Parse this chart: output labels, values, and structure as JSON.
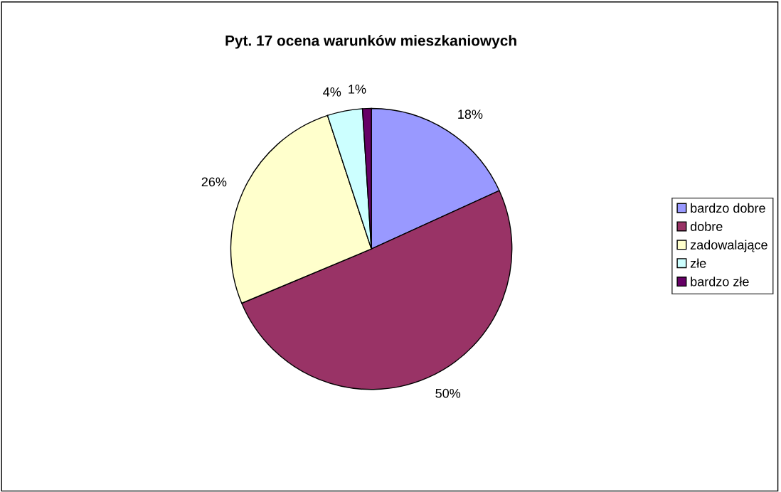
{
  "chart_data": {
    "type": "pie",
    "title": "Pyt. 17 ocena warunków mieszkaniowych",
    "categories": [
      "bardzo dobre",
      "dobre",
      "zadowalające",
      "złe",
      "bardzo złe"
    ],
    "values": [
      18,
      50,
      26,
      4,
      1
    ],
    "value_labels": [
      "18%",
      "50%",
      "26%",
      "4%",
      "1%"
    ],
    "colors": [
      "#9999ff",
      "#993366",
      "#ffffcc",
      "#ccffff",
      "#660066"
    ],
    "legend": "right"
  }
}
